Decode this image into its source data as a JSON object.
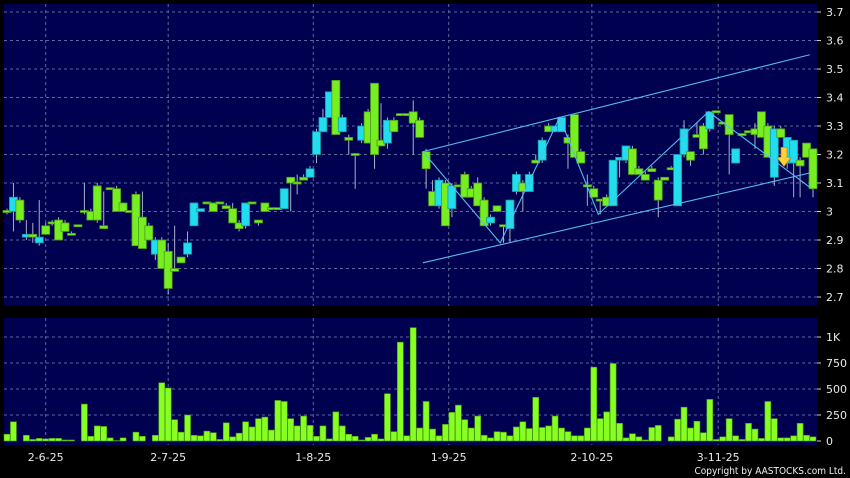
{
  "chart_data": [
    {
      "type": "candlestick",
      "panel": "price",
      "ylim": [
        2.7,
        3.7
      ],
      "yticks": [
        "2.7",
        "2.8",
        "2.9",
        "3",
        "3.1",
        "3.2",
        "3.3",
        "3.4",
        "3.5",
        "3.6",
        "3.7"
      ],
      "grid": true,
      "colors": {
        "up": "#22ddee",
        "down": "#77ee22",
        "background": "#000050",
        "grid": "#5a6a9a",
        "overlay": "#55bbee",
        "signal": "#ffd23a"
      },
      "candles_ohlc": [
        [
          3.0,
          3.01,
          2.99,
          3.0
        ],
        [
          3.0,
          3.1,
          2.93,
          3.05
        ],
        [
          3.04,
          3.05,
          2.96,
          2.97
        ],
        [
          2.91,
          2.97,
          2.9,
          2.92
        ],
        [
          2.92,
          2.96,
          2.89,
          2.91
        ],
        [
          2.89,
          3.04,
          2.88,
          2.91
        ],
        [
          2.95,
          2.96,
          2.92,
          2.92
        ],
        [
          2.96,
          2.97,
          2.95,
          2.96
        ],
        [
          2.97,
          2.98,
          2.9,
          2.9
        ],
        [
          2.96,
          2.97,
          2.93,
          2.93
        ],
        [
          2.92,
          2.93,
          2.92,
          2.92
        ],
        [
          2.95,
          2.95,
          2.95,
          2.95
        ],
        [
          3.0,
          3.1,
          2.99,
          3.0
        ],
        [
          3.0,
          3.01,
          2.97,
          2.97
        ],
        [
          3.09,
          3.1,
          2.96,
          2.97
        ],
        [
          2.95,
          3.07,
          2.94,
          2.94
        ],
        [
          3.08,
          3.08,
          3.08,
          3.08
        ],
        [
          3.08,
          3.09,
          3.0,
          3.0
        ],
        [
          3.03,
          3.03,
          3.0,
          3.0
        ],
        [
          3.0,
          3.0,
          3.0,
          3.0
        ],
        [
          3.06,
          3.07,
          2.88,
          2.88
        ],
        [
          2.98,
          3.07,
          2.87,
          2.87
        ],
        [
          2.95,
          2.96,
          2.9,
          2.9
        ],
        [
          2.85,
          2.91,
          2.83,
          2.9
        ],
        [
          2.9,
          2.91,
          2.8,
          2.8
        ],
        [
          2.86,
          2.89,
          2.71,
          2.73
        ],
        [
          2.8,
          2.95,
          2.79,
          2.79
        ],
        [
          2.84,
          2.84,
          2.82,
          2.82
        ],
        [
          2.85,
          2.93,
          2.84,
          2.89
        ],
        [
          2.95,
          3.03,
          2.95,
          3.03
        ],
        [
          3.0,
          3.01,
          3.0,
          3.01
        ],
        [
          3.03,
          3.03,
          3.03,
          3.03
        ],
        [
          3.03,
          3.03,
          3.0,
          3.0
        ],
        [
          3.03,
          3.03,
          3.03,
          3.03
        ],
        [
          3.02,
          3.03,
          3.01,
          3.01
        ],
        [
          3.01,
          3.03,
          2.96,
          2.96
        ],
        [
          2.96,
          2.97,
          2.93,
          2.94
        ],
        [
          2.95,
          3.03,
          2.94,
          3.03
        ],
        [
          3.03,
          3.03,
          3.03,
          3.03
        ],
        [
          2.97,
          2.97,
          2.95,
          2.96
        ],
        [
          3.03,
          3.03,
          3.0,
          3.0
        ],
        [
          3.01,
          3.01,
          3.01,
          3.01
        ],
        [
          3.01,
          3.01,
          3.01,
          3.01
        ],
        [
          3.01,
          3.08,
          3.01,
          3.08
        ],
        [
          3.12,
          3.12,
          3.0,
          3.1
        ],
        [
          3.1,
          3.13,
          3.06,
          3.1
        ],
        [
          3.12,
          3.13,
          3.11,
          3.11
        ],
        [
          3.12,
          3.16,
          3.12,
          3.15
        ],
        [
          3.2,
          3.29,
          3.17,
          3.28
        ],
        [
          3.28,
          3.36,
          3.28,
          3.33
        ],
        [
          3.33,
          3.42,
          3.33,
          3.42
        ],
        [
          3.46,
          3.46,
          3.27,
          3.27
        ],
        [
          3.28,
          3.34,
          3.28,
          3.33
        ],
        [
          3.26,
          3.27,
          3.2,
          3.25
        ],
        [
          3.2,
          3.2,
          3.08,
          3.2
        ],
        [
          3.25,
          3.31,
          3.24,
          3.3
        ],
        [
          3.35,
          3.36,
          3.24,
          3.24
        ],
        [
          3.45,
          3.45,
          3.15,
          3.2
        ],
        [
          3.25,
          3.38,
          3.23,
          3.23
        ],
        [
          3.24,
          3.33,
          3.22,
          3.32
        ],
        [
          3.32,
          3.33,
          3.28,
          3.28
        ],
        [
          3.34,
          3.34,
          3.34,
          3.34
        ],
        [
          3.34,
          3.34,
          3.34,
          3.34
        ],
        [
          3.35,
          3.39,
          3.2,
          3.31
        ],
        [
          3.32,
          3.33,
          3.26,
          3.26
        ],
        [
          3.21,
          3.22,
          3.08,
          3.15
        ],
        [
          3.07,
          3.11,
          3.02,
          3.02
        ],
        [
          3.02,
          3.12,
          3.01,
          3.11
        ],
        [
          3.1,
          3.11,
          2.95,
          2.95
        ],
        [
          3.01,
          3.1,
          2.98,
          3.09
        ],
        [
          3.09,
          3.09,
          3.09,
          3.09
        ],
        [
          3.13,
          3.14,
          3.05,
          3.05
        ],
        [
          3.08,
          3.09,
          3.05,
          3.05
        ],
        [
          3.1,
          3.12,
          3.02,
          3.02
        ],
        [
          3.04,
          3.05,
          2.95,
          2.95
        ],
        [
          2.96,
          2.99,
          2.95,
          2.98
        ],
        [
          3.02,
          3.02,
          3.0,
          3.0
        ],
        [
          2.95,
          2.95,
          2.89,
          2.95
        ],
        [
          2.94,
          3.04,
          2.89,
          3.04
        ],
        [
          3.07,
          3.14,
          3.06,
          3.13
        ],
        [
          3.1,
          3.11,
          3.0,
          3.07
        ],
        [
          3.07,
          3.14,
          3.07,
          3.13
        ],
        [
          3.18,
          3.2,
          3.17,
          3.17
        ],
        [
          3.18,
          3.26,
          3.17,
          3.25
        ],
        [
          3.3,
          3.31,
          3.28,
          3.28
        ],
        [
          3.28,
          3.3,
          3.28,
          3.3
        ],
        [
          3.28,
          3.33,
          3.28,
          3.33
        ],
        [
          3.26,
          3.27,
          3.15,
          3.24
        ],
        [
          3.34,
          3.34,
          3.19,
          3.19
        ],
        [
          3.21,
          3.22,
          3.17,
          3.17
        ],
        [
          3.09,
          3.13,
          3.02,
          3.09
        ],
        [
          3.08,
          3.09,
          3.05,
          3.05
        ],
        [
          3.04,
          3.04,
          2.99,
          3.04
        ],
        [
          3.05,
          3.06,
          3.02,
          3.02
        ],
        [
          3.02,
          3.18,
          3.02,
          3.18
        ],
        [
          3.18,
          3.19,
          3.12,
          3.19
        ],
        [
          3.18,
          3.23,
          3.17,
          3.23
        ],
        [
          3.22,
          3.23,
          3.13,
          3.13
        ],
        [
          3.15,
          3.16,
          3.13,
          3.13
        ],
        [
          3.13,
          3.14,
          3.11,
          3.11
        ],
        [
          3.15,
          3.16,
          3.14,
          3.14
        ],
        [
          3.11,
          3.12,
          2.98,
          3.04
        ],
        [
          3.12,
          3.12,
          3.11,
          3.11
        ],
        [
          3.15,
          3.16,
          3.15,
          3.15
        ],
        [
          3.02,
          3.2,
          3.02,
          3.2
        ],
        [
          3.2,
          3.32,
          3.19,
          3.29
        ],
        [
          3.21,
          3.21,
          3.16,
          3.18
        ],
        [
          3.27,
          3.31,
          3.26,
          3.26
        ],
        [
          3.3,
          3.31,
          3.2,
          3.22
        ],
        [
          3.29,
          3.35,
          3.28,
          3.35
        ],
        [
          3.35,
          3.35,
          3.35,
          3.35
        ],
        [
          3.31,
          3.31,
          3.31,
          3.31
        ],
        [
          3.34,
          3.34,
          3.13,
          3.27
        ],
        [
          3.17,
          3.22,
          3.17,
          3.22
        ],
        [
          3.27,
          3.27,
          3.27,
          3.27
        ],
        [
          3.28,
          3.28,
          3.28,
          3.28
        ],
        [
          3.29,
          3.31,
          3.22,
          3.27
        ],
        [
          3.35,
          3.35,
          3.26,
          3.26
        ],
        [
          3.3,
          3.31,
          3.19,
          3.19
        ],
        [
          3.12,
          3.3,
          3.09,
          3.29
        ],
        [
          3.29,
          3.3,
          3.26,
          3.26
        ],
        [
          3.17,
          3.26,
          3.15,
          3.26
        ],
        [
          3.17,
          3.25,
          3.05,
          3.25
        ],
        [
          3.18,
          3.19,
          3.05,
          3.16
        ],
        [
          3.24,
          3.24,
          3.19,
          3.19
        ],
        [
          3.22,
          3.22,
          3.05,
          3.08
        ]
      ],
      "overlays": {
        "channel_upper": [
          [
            64.5,
            3.21
          ],
          [
            124.5,
            3.55
          ]
        ],
        "channel_lower": [
          [
            64.5,
            2.82
          ],
          [
            124.5,
            3.135
          ]
        ],
        "zigzag": [
          [
            64.5,
            3.21
          ],
          [
            76.5,
            2.89
          ],
          [
            85.7,
            3.33
          ],
          [
            91.7,
            2.99
          ],
          [
            108.8,
            3.35
          ],
          [
            124.8,
            3.08
          ]
        ],
        "signal_arrow": {
          "direction": "down",
          "bar_index": 120.5,
          "price": 3.19
        }
      }
    },
    {
      "type": "bar",
      "panel": "volume",
      "ylim": [
        0,
        1100
      ],
      "yticks": [
        {
          "value": 0,
          "label": "0"
        },
        {
          "value": 250,
          "label": "250"
        },
        {
          "value": 500,
          "label": "500"
        },
        {
          "value": 750,
          "label": "750"
        },
        {
          "value": 1000,
          "label": "1K"
        }
      ],
      "grid": true,
      "color": "#88ff22",
      "values": [
        65,
        185,
        0,
        55,
        15,
        25,
        20,
        25,
        25,
        10,
        10,
        0,
        355,
        45,
        145,
        140,
        30,
        5,
        30,
        0,
        85,
        45,
        0,
        55,
        560,
        510,
        205,
        85,
        250,
        55,
        50,
        95,
        80,
        15,
        175,
        40,
        75,
        185,
        135,
        215,
        230,
        105,
        390,
        380,
        215,
        145,
        240,
        150,
        45,
        145,
        20,
        280,
        145,
        65,
        45,
        10,
        35,
        65,
        20,
        455,
        90,
        950,
        50,
        1090,
        125,
        380,
        115,
        50,
        160,
        275,
        345,
        205,
        125,
        240,
        55,
        30,
        90,
        85,
        50,
        135,
        185,
        120,
        420,
        130,
        145,
        240,
        125,
        90,
        50,
        50,
        125,
        710,
        215,
        280,
        745,
        170,
        30,
        70,
        40,
        10,
        130,
        150,
        0,
        40,
        210,
        325,
        125,
        190,
        80,
        400,
        15,
        40,
        215,
        50,
        15,
        170,
        115,
        25,
        380,
        215,
        30,
        30,
        50,
        170,
        55,
        40
      ]
    }
  ],
  "x_axis": {
    "labels": [
      {
        "label": "2-6-25",
        "bar_index": 6
      },
      {
        "label": "2-7-25",
        "bar_index": 25
      },
      {
        "label": "1-8-25",
        "bar_index": 47.5
      },
      {
        "label": "1-9-25",
        "bar_index": 68.5
      },
      {
        "label": "2-10-25",
        "bar_index": 90.7
      },
      {
        "label": "3-11-25",
        "bar_index": 110.3
      }
    ]
  },
  "footer": {
    "copyright": "Copyright by AASTOCKS.com Ltd."
  }
}
